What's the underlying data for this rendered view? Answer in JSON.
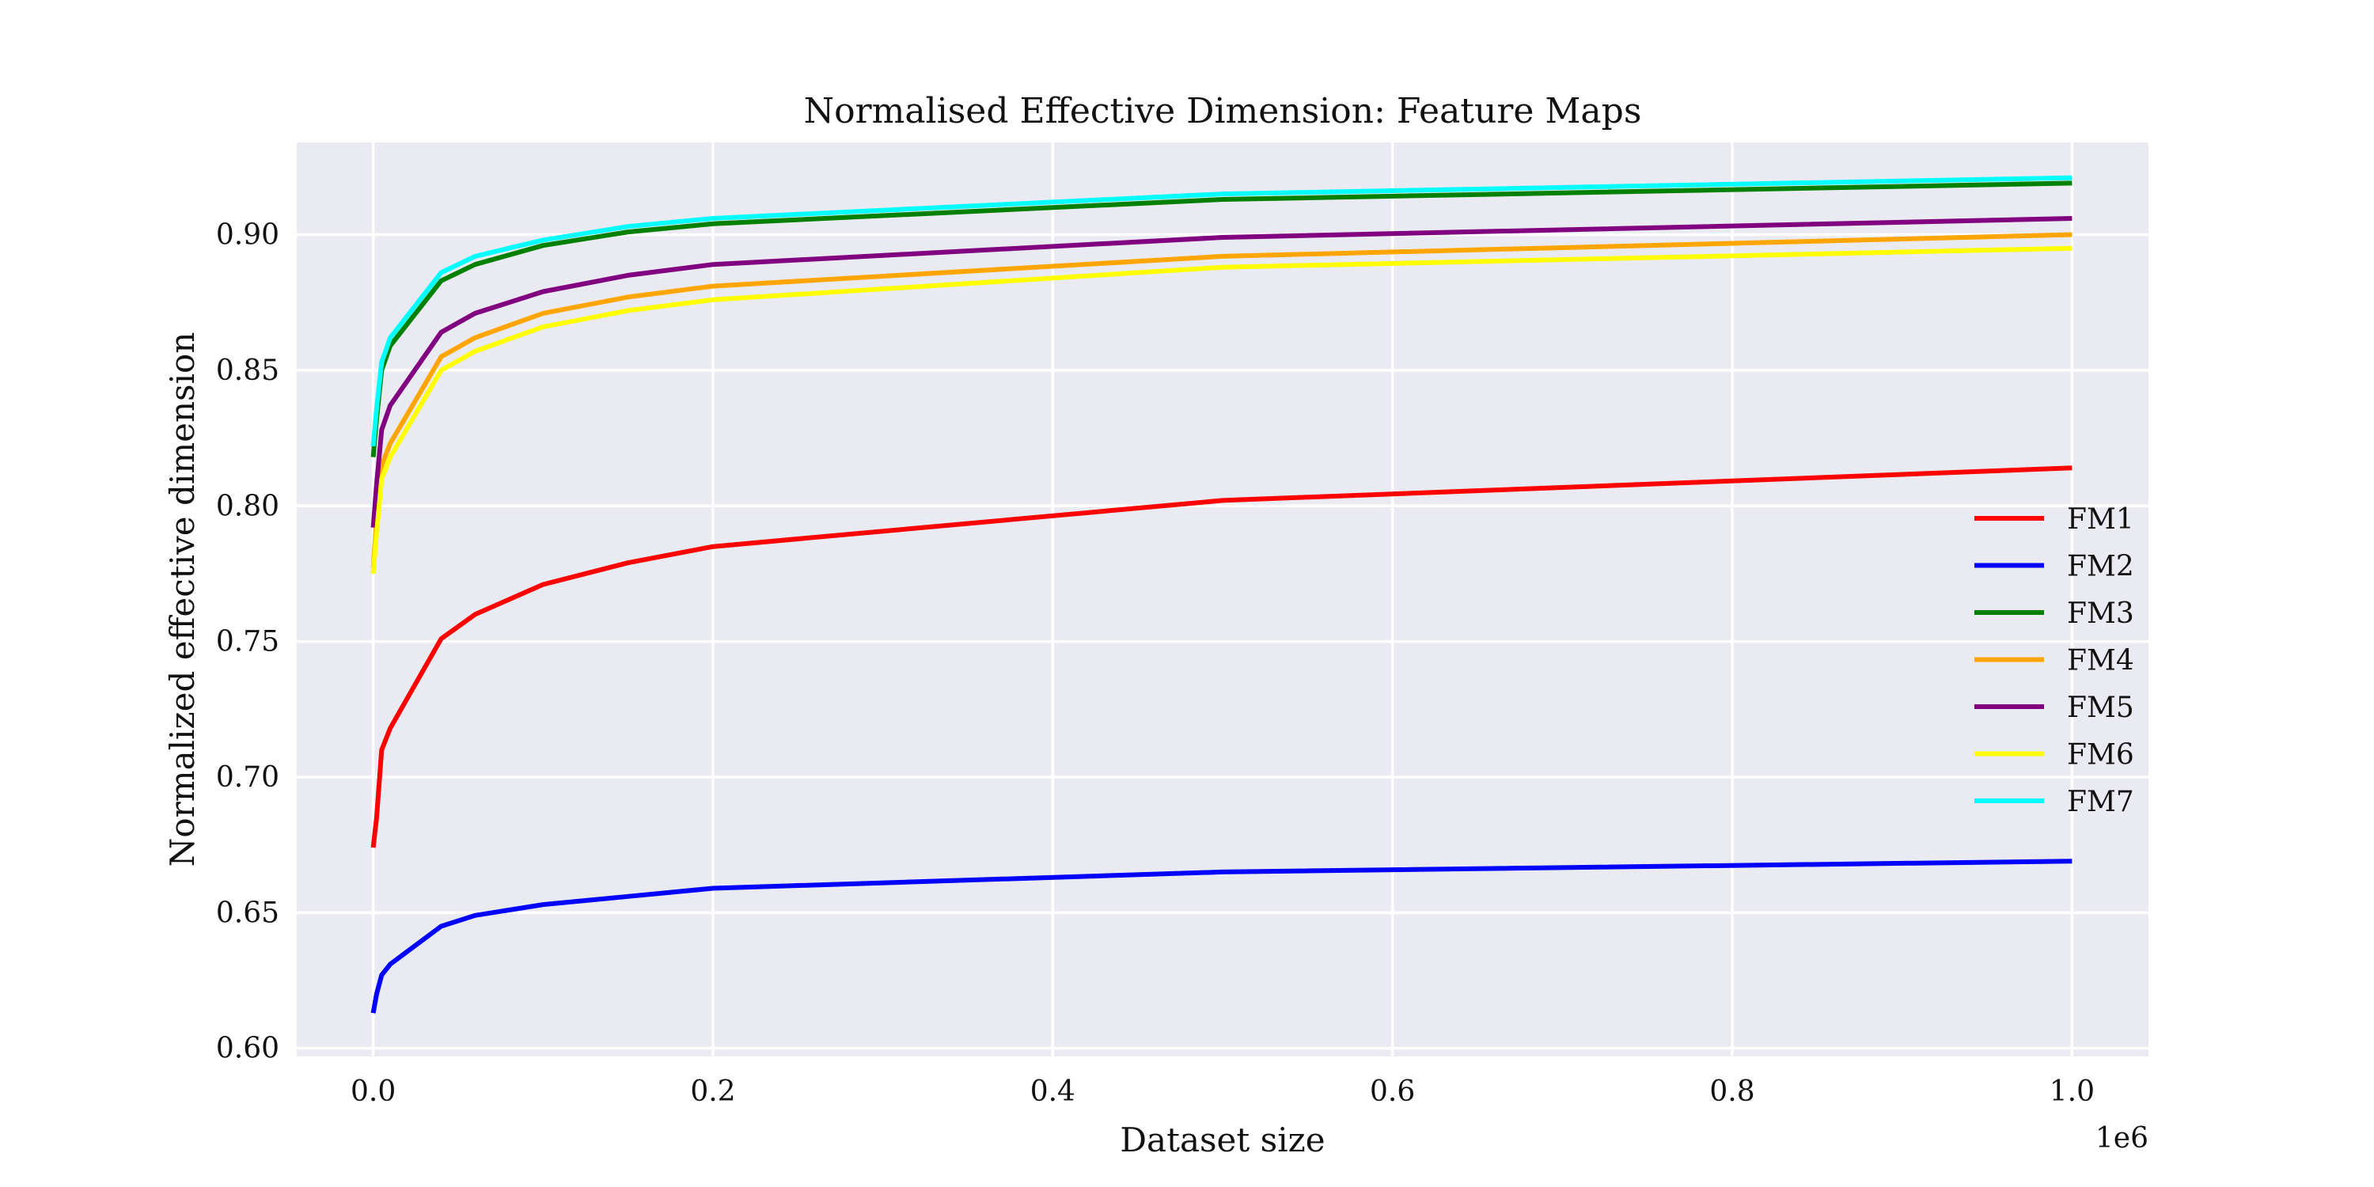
{
  "chart_data": {
    "type": "line",
    "title": "Normalised Effective Dimension: Feature Maps",
    "xlabel": "Dataset size",
    "ylabel": "Normalized effective dimension",
    "x_offset_label": "1e6",
    "xlim": [
      -0.045,
      1.045
    ],
    "ylim": [
      0.597,
      0.934
    ],
    "xticks": [
      0.0,
      0.2,
      0.4,
      0.6,
      0.8,
      1.0
    ],
    "xtick_labels": [
      "0.0",
      "0.2",
      "0.4",
      "0.6",
      "0.8",
      "1.0"
    ],
    "yticks": [
      0.6,
      0.65,
      0.7,
      0.75,
      0.8,
      0.85,
      0.9
    ],
    "ytick_labels": [
      "0.60",
      "0.65",
      "0.70",
      "0.75",
      "0.80",
      "0.85",
      "0.90"
    ],
    "grid": true,
    "background": "#eaeaf2",
    "legend_position": "right",
    "x": [
      0.0,
      0.002,
      0.005,
      0.01,
      0.04,
      0.06,
      0.1,
      0.15,
      0.2,
      0.5,
      1.0
    ],
    "series": [
      {
        "name": "FM1",
        "color": "#ff0000",
        "values": [
          0.674,
          0.685,
          0.71,
          0.718,
          0.751,
          0.76,
          0.771,
          0.779,
          0.785,
          0.802,
          0.814
        ]
      },
      {
        "name": "FM2",
        "color": "#0000ff",
        "values": [
          0.613,
          0.62,
          0.627,
          0.631,
          0.645,
          0.649,
          0.653,
          0.656,
          0.659,
          0.665,
          0.669
        ]
      },
      {
        "name": "FM3",
        "color": "#008000",
        "values": [
          0.818,
          0.832,
          0.85,
          0.859,
          0.883,
          0.889,
          0.896,
          0.901,
          0.904,
          0.913,
          0.919
        ]
      },
      {
        "name": "FM4",
        "color": "#ffa500",
        "values": [
          0.777,
          0.795,
          0.815,
          0.823,
          0.855,
          0.862,
          0.871,
          0.877,
          0.881,
          0.892,
          0.9
        ]
      },
      {
        "name": "FM5",
        "color": "#800080",
        "values": [
          0.792,
          0.808,
          0.828,
          0.837,
          0.864,
          0.871,
          0.879,
          0.885,
          0.889,
          0.899,
          0.906
        ]
      },
      {
        "name": "FM6",
        "color": "#ffff00",
        "values": [
          0.775,
          0.79,
          0.81,
          0.818,
          0.85,
          0.857,
          0.866,
          0.872,
          0.876,
          0.888,
          0.895
        ]
      },
      {
        "name": "FM7",
        "color": "#00ffff",
        "values": [
          0.822,
          0.836,
          0.853,
          0.862,
          0.886,
          0.892,
          0.898,
          0.903,
          0.906,
          0.915,
          0.921
        ]
      }
    ]
  }
}
